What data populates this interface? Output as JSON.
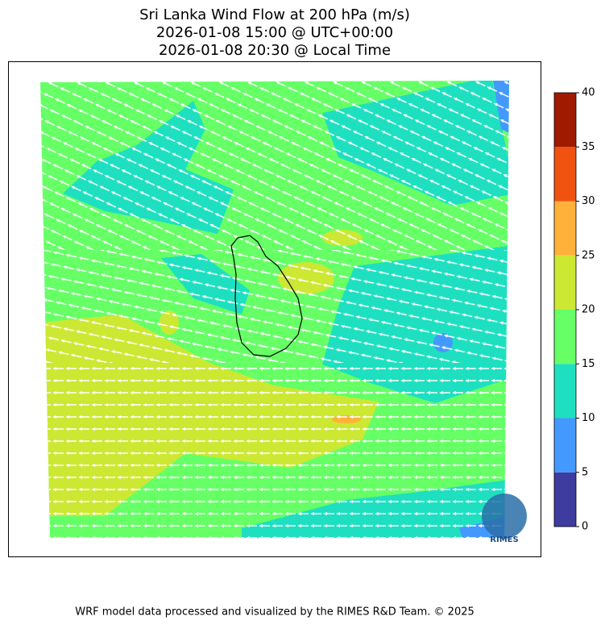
{
  "title": [
    "Sri Lanka Wind Flow at 200 hPa (m/s)",
    "2026-01-08 15:00 @ UTC+00:00",
    "2026-01-08 20:30 @ Local Time"
  ],
  "colorbar": {
    "lim": [
      0,
      40
    ],
    "ticks": [
      0,
      5,
      10,
      15,
      20,
      25,
      30,
      35,
      40
    ],
    "colors": [
      "#3e3c9e",
      "#4499ff",
      "#1ee0c0",
      "#66ff66",
      "#cce833",
      "#ffb13a",
      "#f0520f",
      "#a01a00"
    ]
  },
  "logo": "RIMES",
  "footer": "WRF model data processed and visualized by the RIMES R&D Team. © 2025"
}
